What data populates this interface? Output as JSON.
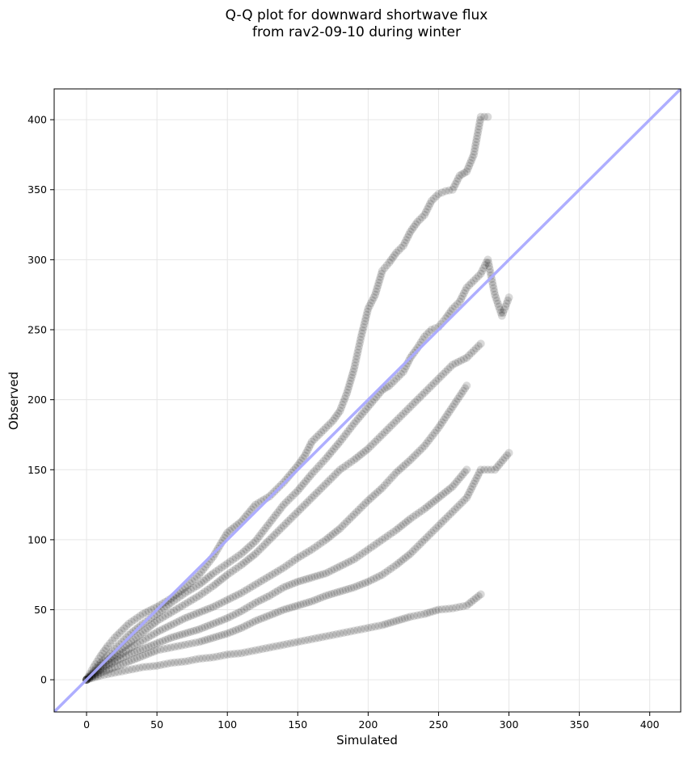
{
  "chart_data": {
    "type": "scatter",
    "title": "Q-Q plot for downward shortwave flux\nfrom rav2-09-10 during winter",
    "xlabel": "Simulated",
    "ylabel": "Observed",
    "xlim": [
      -23,
      422
    ],
    "ylim": [
      -23,
      422
    ],
    "xticks": [
      0,
      50,
      100,
      150,
      200,
      250,
      300,
      350,
      400
    ],
    "yticks": [
      0,
      50,
      100,
      150,
      200,
      250,
      300,
      350,
      400
    ],
    "grid": true,
    "colors": {
      "points": "#000000",
      "reference_line": "#aaaaff",
      "grid": "#e6e6e6"
    },
    "reference_line": {
      "slope": 1,
      "intercept": 0
    },
    "series": [
      {
        "x": [
          0,
          5,
          10,
          15,
          20,
          25,
          30,
          40,
          50,
          60,
          70,
          80,
          90,
          100,
          110,
          120,
          130,
          140,
          150,
          155,
          160,
          170,
          175,
          180,
          185,
          190,
          195,
          200,
          205,
          210,
          215,
          220,
          225,
          230,
          235,
          240,
          245,
          250,
          255,
          260,
          265,
          270,
          275,
          280,
          285
        ],
        "y": [
          0,
          9,
          17,
          24,
          30,
          35,
          40,
          47,
          52,
          58,
          66,
          75,
          88,
          105,
          113,
          125,
          131,
          141,
          153,
          160,
          170,
          180,
          185,
          192,
          205,
          222,
          245,
          265,
          275,
          292,
          298,
          305,
          310,
          320,
          327,
          332,
          342,
          347,
          349,
          350,
          360,
          363,
          375,
          402,
          402
        ]
      },
      {
        "x": [
          0,
          5,
          10,
          20,
          30,
          40,
          50,
          60,
          70,
          80,
          90,
          100,
          110,
          120,
          130,
          140,
          150,
          160,
          170,
          180,
          190,
          200,
          210,
          215,
          220,
          225,
          230,
          235,
          240,
          245,
          250,
          255,
          260,
          265,
          270,
          275,
          280,
          285,
          290,
          295,
          300
        ],
        "y": [
          0,
          6,
          12,
          22,
          32,
          40,
          47,
          55,
          62,
          68,
          76,
          83,
          90,
          99,
          112,
          125,
          135,
          147,
          158,
          170,
          183,
          195,
          207,
          210,
          215,
          220,
          230,
          237,
          245,
          250,
          252,
          258,
          265,
          270,
          280,
          285,
          290,
          300,
          275,
          260,
          273
        ]
      },
      {
        "x": [
          0,
          5,
          10,
          20,
          30,
          40,
          50,
          60,
          70,
          80,
          90,
          100,
          110,
          120,
          130,
          140,
          150,
          160,
          170,
          180,
          190,
          200,
          210,
          220,
          230,
          240,
          250,
          260,
          270,
          280
        ],
        "y": [
          0,
          5,
          10,
          18,
          26,
          34,
          42,
          48,
          54,
          60,
          67,
          75,
          82,
          90,
          100,
          110,
          120,
          130,
          140,
          150,
          157,
          165,
          175,
          185,
          195,
          205,
          215,
          225,
          230,
          240
        ]
      },
      {
        "x": [
          0,
          5,
          10,
          20,
          30,
          40,
          50,
          60,
          70,
          80,
          90,
          100,
          110,
          120,
          130,
          140,
          150,
          160,
          170,
          180,
          190,
          200,
          210,
          220,
          230,
          240,
          250,
          260,
          270
        ],
        "y": [
          0,
          4,
          8,
          15,
          22,
          28,
          34,
          39,
          44,
          48,
          52,
          57,
          62,
          68,
          74,
          80,
          87,
          93,
          100,
          108,
          118,
          128,
          137,
          148,
          157,
          167,
          180,
          195,
          210
        ]
      },
      {
        "x": [
          0,
          10,
          20,
          30,
          40,
          50,
          60,
          70,
          80,
          90,
          100,
          110,
          120,
          130,
          140,
          150,
          160,
          170,
          180,
          190,
          200,
          210,
          220,
          230,
          240,
          250,
          260,
          270
        ],
        "y": [
          0,
          7,
          13,
          18,
          22,
          26,
          30,
          33,
          36,
          40,
          44,
          49,
          55,
          60,
          66,
          70,
          73,
          76,
          81,
          86,
          93,
          100,
          107,
          115,
          122,
          130,
          138,
          150
        ]
      },
      {
        "x": [
          0,
          10,
          20,
          30,
          40,
          50,
          60,
          70,
          80,
          90,
          100,
          110,
          120,
          130,
          140,
          150,
          160,
          170,
          180,
          190,
          200,
          210,
          220,
          230,
          240,
          250,
          260,
          270,
          280,
          290,
          300
        ],
        "y": [
          0,
          5,
          9,
          13,
          17,
          21,
          23,
          25,
          27,
          30,
          33,
          37,
          42,
          46,
          50,
          53,
          56,
          60,
          63,
          66,
          70,
          75,
          82,
          90,
          100,
          110,
          120,
          130,
          150,
          150,
          162
        ]
      },
      {
        "x": [
          0,
          10,
          20,
          30,
          40,
          50,
          60,
          70,
          80,
          90,
          100,
          110,
          120,
          130,
          140,
          150,
          160,
          170,
          180,
          190,
          200,
          210,
          220,
          230,
          240,
          250,
          260,
          270,
          280
        ],
        "y": [
          0,
          3,
          5,
          7,
          9,
          10,
          12,
          13,
          15,
          16,
          18,
          19,
          21,
          23,
          25,
          27,
          29,
          31,
          33,
          35,
          37,
          39,
          42,
          45,
          47,
          50,
          51,
          53,
          61
        ]
      }
    ]
  }
}
